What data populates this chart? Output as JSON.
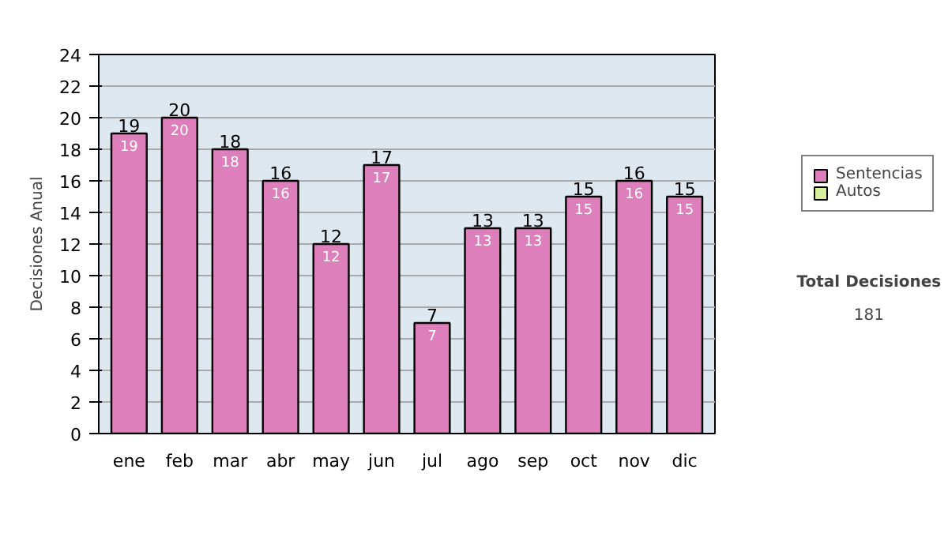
{
  "chart_data": {
    "type": "bar",
    "ylabel": "Decisiones Anual",
    "categories": [
      "ene",
      "feb",
      "mar",
      "abr",
      "may",
      "jun",
      "jul",
      "ago",
      "sep",
      "oct",
      "nov",
      "dic"
    ],
    "series": [
      {
        "name": "Sentencias",
        "color": "#dd7fbb",
        "values": [
          19,
          20,
          18,
          16,
          12,
          17,
          7,
          13,
          13,
          15,
          16,
          15
        ],
        "value_labels": [
          "19",
          "20",
          "18",
          "16",
          "12",
          "17",
          "7",
          "13",
          "13",
          "15",
          "16",
          "15"
        ]
      },
      {
        "name": "Autos",
        "color": "#d8ee9c",
        "values": [
          null,
          null,
          null,
          null,
          null,
          null,
          null,
          null,
          null,
          null,
          null,
          null
        ]
      }
    ],
    "stacked": true,
    "totals": [
      "19",
      "20",
      "18",
      "16",
      "12",
      "17",
      "7",
      "13",
      "13",
      "15",
      "16",
      "15"
    ],
    "ylim": [
      0,
      24
    ],
    "yticks": [
      0,
      2,
      4,
      6,
      8,
      10,
      12,
      14,
      16,
      18,
      20,
      22,
      24
    ],
    "grid": "y",
    "legend": "right",
    "annotations": [
      "Total Decisiones",
      "181"
    ]
  }
}
